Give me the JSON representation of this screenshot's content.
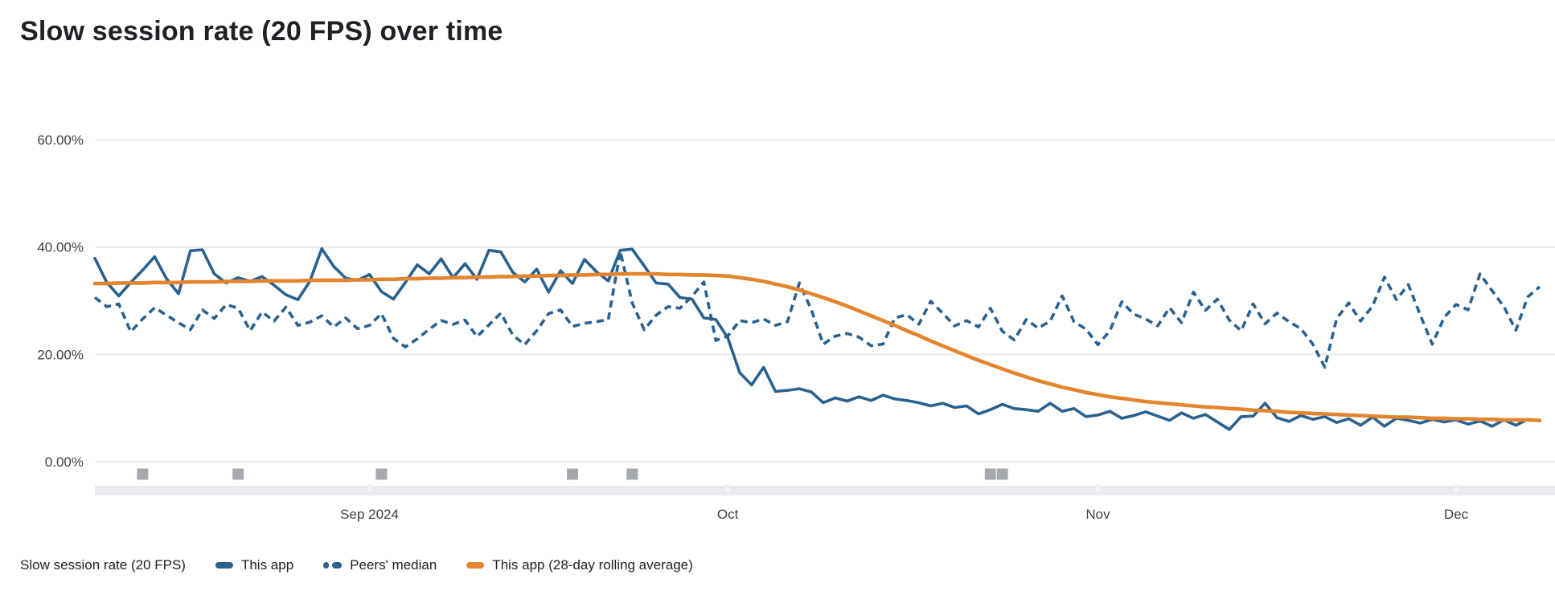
{
  "title": "Slow session rate (20 FPS) over time",
  "legend": {
    "label": "Slow session rate (20 FPS)",
    "items": [
      {
        "label": "This app",
        "style": "solid",
        "color": "#29618f"
      },
      {
        "label": "Peers' median",
        "style": "dashed",
        "color": "#29618f"
      },
      {
        "label": "This app (28-day rolling average)",
        "style": "solid",
        "color": "#e3842f"
      }
    ]
  },
  "chart_data": {
    "type": "line",
    "title": "Slow session rate (20 FPS) over time",
    "xlabel": "",
    "ylabel": "Slow session rate (20 FPS)",
    "ylim": [
      0,
      66
    ],
    "yticks": [
      0,
      20,
      40,
      60
    ],
    "ytick_labels": [
      "0.00%",
      "20.00%",
      "40.00%",
      "60.00%"
    ],
    "grid": true,
    "legend_position": "bottom",
    "x_unit": "day",
    "x_ticks": [
      {
        "index": 23,
        "label": "Sep 2024"
      },
      {
        "index": 53,
        "label": "Oct"
      },
      {
        "index": 84,
        "label": "Nov"
      },
      {
        "index": 114,
        "label": "Dec"
      }
    ],
    "release_markers": {
      "indices": [
        4,
        12,
        24,
        40,
        45,
        75,
        76
      ]
    },
    "colors": {
      "this_app": "#29618f",
      "peers_median": "#29618f",
      "rolling_average": "#e3842f",
      "gridline": "#e8eaed",
      "timeline_band": "#e9ebee",
      "release_marker": "#a5a9ad",
      "axis_text": "#3c4043",
      "title_text": "#202124"
    },
    "series": [
      {
        "name": "This app",
        "style": "solid",
        "values": [
          37.9,
          33.4,
          30.9,
          33.4,
          35.7,
          38.2,
          34.1,
          31.3,
          39.3,
          39.5,
          35.0,
          33.3,
          34.3,
          33.6,
          34.5,
          32.9,
          31.1,
          30.2,
          33.6,
          39.7,
          36.4,
          34.2,
          33.8,
          34.9,
          31.7,
          30.3,
          33.4,
          36.7,
          35.0,
          37.8,
          34.3,
          36.9,
          34.0,
          39.4,
          39.1,
          35.3,
          33.5,
          35.9,
          31.6,
          35.6,
          33.2,
          37.7,
          35.4,
          33.7,
          39.4,
          39.6,
          36.5,
          33.3,
          33.1,
          30.6,
          30.3,
          26.8,
          26.5,
          23.1,
          16.6,
          14.3,
          17.6,
          13.1,
          13.3,
          13.6,
          13.0,
          11.0,
          11.9,
          11.3,
          12.1,
          11.4,
          12.4,
          11.7,
          11.4,
          11.0,
          10.4,
          10.9,
          10.1,
          10.4,
          8.9,
          9.7,
          10.7,
          9.9,
          9.7,
          9.4,
          10.9,
          9.4,
          9.9,
          8.4,
          8.7,
          9.4,
          8.1,
          8.6,
          9.3,
          8.5,
          7.7,
          9.1,
          8.1,
          8.8,
          7.4,
          6.0,
          8.4,
          8.5,
          10.9,
          8.2,
          7.5,
          8.6,
          7.9,
          8.4,
          7.3,
          8.0,
          6.8,
          8.3,
          6.6,
          8.1,
          7.7,
          7.2,
          7.9,
          7.4,
          7.8,
          7.0,
          7.6,
          6.6,
          7.8,
          6.8,
          7.9,
          7.6
        ]
      },
      {
        "name": "Peers' median",
        "style": "dashed",
        "values": [
          30.6,
          28.9,
          29.4,
          24.2,
          26.6,
          28.7,
          27.3,
          25.9,
          24.6,
          28.3,
          26.7,
          29.3,
          28.6,
          24.4,
          27.9,
          26.2,
          28.8,
          25.4,
          26.0,
          27.2,
          25.1,
          26.8,
          24.8,
          25.4,
          27.6,
          23.0,
          21.4,
          22.9,
          24.7,
          26.3,
          25.6,
          26.4,
          23.3,
          25.5,
          27.7,
          23.6,
          21.8,
          24.4,
          27.6,
          28.3,
          25.2,
          25.8,
          26.1,
          26.5,
          39.2,
          29.6,
          24.6,
          27.3,
          28.9,
          28.6,
          30.8,
          33.5,
          22.6,
          23.4,
          26.3,
          25.9,
          26.6,
          25.4,
          26.1,
          33.3,
          28.3,
          21.9,
          23.4,
          23.9,
          23.2,
          21.6,
          21.9,
          26.8,
          27.4,
          25.6,
          29.9,
          27.7,
          25.3,
          26.3,
          25.1,
          28.6,
          24.3,
          22.7,
          26.5,
          24.9,
          26.2,
          30.9,
          26.1,
          24.7,
          21.8,
          24.4,
          29.8,
          27.5,
          26.6,
          25.3,
          28.7,
          25.9,
          31.6,
          28.2,
          30.3,
          26.4,
          24.4,
          29.4,
          25.7,
          27.7,
          26.1,
          24.8,
          21.9,
          17.6,
          26.7,
          29.6,
          26.2,
          29.0,
          34.4,
          30.2,
          33.0,
          27.3,
          21.9,
          26.9,
          29.3,
          28.3,
          35.0,
          31.9,
          28.9,
          24.5,
          30.7,
          32.6
        ]
      },
      {
        "name": "This app (28-day rolling average)",
        "style": "solid",
        "values": [
          33.2,
          33.2,
          33.3,
          33.3,
          33.3,
          33.4,
          33.4,
          33.4,
          33.5,
          33.5,
          33.5,
          33.6,
          33.6,
          33.6,
          33.7,
          33.7,
          33.7,
          33.7,
          33.8,
          33.8,
          33.8,
          33.8,
          33.9,
          33.9,
          34.0,
          34.0,
          34.1,
          34.1,
          34.2,
          34.2,
          34.3,
          34.3,
          34.4,
          34.4,
          34.5,
          34.5,
          34.6,
          34.6,
          34.7,
          34.7,
          34.8,
          34.8,
          34.9,
          34.9,
          35.0,
          35.0,
          35.0,
          35.0,
          34.9,
          34.9,
          34.8,
          34.8,
          34.7,
          34.6,
          34.3,
          34.0,
          33.6,
          33.1,
          32.6,
          32.0,
          31.3,
          30.6,
          29.8,
          29.0,
          28.1,
          27.2,
          26.3,
          25.4,
          24.4,
          23.5,
          22.5,
          21.6,
          20.7,
          19.8,
          18.9,
          18.1,
          17.3,
          16.5,
          15.8,
          15.1,
          14.5,
          13.9,
          13.4,
          12.9,
          12.5,
          12.1,
          11.8,
          11.5,
          11.2,
          11.0,
          10.8,
          10.6,
          10.4,
          10.2,
          10.1,
          9.9,
          9.8,
          9.6,
          9.5,
          9.4,
          9.2,
          9.1,
          9.0,
          8.9,
          8.8,
          8.7,
          8.6,
          8.5,
          8.4,
          8.3,
          8.3,
          8.2,
          8.1,
          8.1,
          8.0,
          8.0,
          7.9,
          7.9,
          7.8,
          7.8,
          7.8,
          7.7
        ]
      }
    ]
  }
}
